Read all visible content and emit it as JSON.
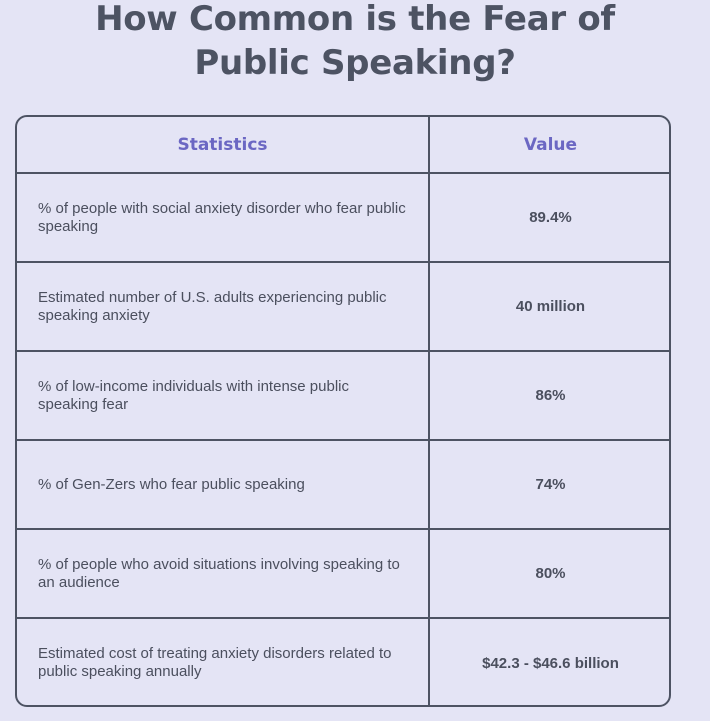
{
  "title": {
    "line1": "How Common is the Fear of",
    "line2": "Public Speaking?"
  },
  "table": {
    "headers": [
      "Statistics",
      "Value"
    ],
    "rows": [
      {
        "statistic": "% of people with social anxiety disorder who fear public speaking",
        "value": "89.4%"
      },
      {
        "statistic": "Estimated number of U.S. adults experiencing public speaking anxiety",
        "value": "40 million"
      },
      {
        "statistic": "% of low-income individuals with intense public speaking fear",
        "value": "86%"
      },
      {
        "statistic": "% of Gen-Zers who fear public speaking",
        "value": "74%"
      },
      {
        "statistic": "% of people who avoid situations involving speaking to an audience",
        "value": "80%"
      },
      {
        "statistic": "Estimated cost of treating anxiety disorders related to public speaking annually",
        "value": "$42.3 - $46.6 billion"
      }
    ]
  },
  "colors": {
    "background": "#e4e4f5",
    "header_text": "#6b67c3",
    "body_text": "#4b4f5e",
    "border": "#4d5363"
  }
}
